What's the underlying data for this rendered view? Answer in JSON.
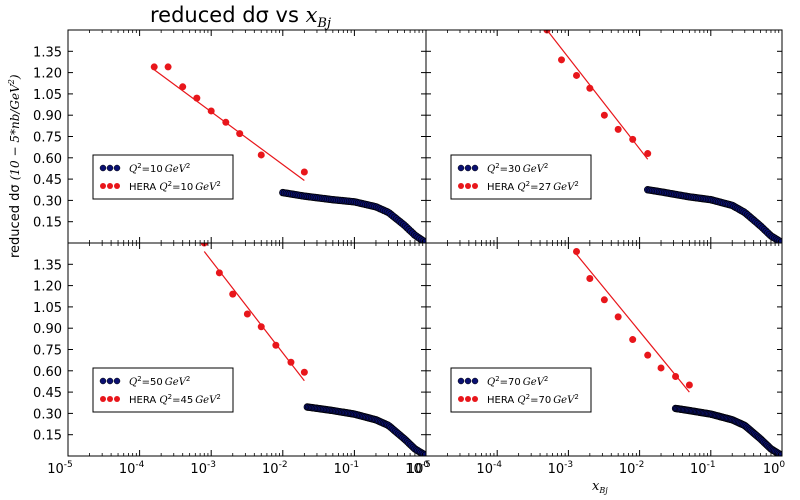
{
  "figure": {
    "title_main": "reduced dσ vs ",
    "title_math": "x",
    "title_sub": "Bj",
    "ylabel_main": "reduced dσ ",
    "ylabel_math": "(10 − 5*nb/GeV",
    "ylabel_sup": "2",
    "ylabel_close": ")",
    "xlabel_math": "x",
    "xlabel_sub": "Bj"
  },
  "colors": {
    "model": "#0a1072",
    "model_edge": "#000000",
    "hera": "#e8161b",
    "fit": "#e8161b"
  },
  "chart_data": [
    {
      "type": "scatter",
      "panel": "top-left",
      "x_scale": "log",
      "xlim": [
        1e-05,
        1
      ],
      "ylim": [
        0,
        1.5
      ],
      "y_ticks": [
        "0.15",
        "0.30",
        "0.45",
        "0.60",
        "0.75",
        "0.90",
        "1.05",
        "1.20",
        "1.35"
      ],
      "grid": false,
      "legend": {
        "placement": "center-left",
        "entries": [
          {
            "series": "model",
            "prefix": "",
            "q": "Q",
            "q_sup": "2",
            "value": "=10",
            "unit": "GeV",
            "unit_sup": "2"
          },
          {
            "series": "hera",
            "prefix": "HERA ",
            "q": "Q",
            "q_sup": "2",
            "value": "=10",
            "unit": "GeV",
            "unit_sup": "2"
          }
        ]
      },
      "series": [
        {
          "name": "Q²=10 GeV²",
          "kind": "model",
          "x_from": 0.01,
          "x_to": 0.98,
          "curve": [
            [
              0.01,
              0.355
            ],
            [
              0.02,
              0.33
            ],
            [
              0.05,
              0.305
            ],
            [
              0.1,
              0.29
            ],
            [
              0.2,
              0.255
            ],
            [
              0.3,
              0.215
            ],
            [
              0.5,
              0.125
            ],
            [
              0.7,
              0.055
            ],
            [
              0.98,
              0.005
            ]
          ]
        },
        {
          "name": "HERA Q²=10 GeV²",
          "kind": "hera",
          "x": [
            0.00016,
            0.00025,
            0.0004,
            0.00063,
            0.001,
            0.0016,
            0.0025,
            0.005,
            0.02
          ],
          "y": [
            1.24,
            1.24,
            1.1,
            1.02,
            0.93,
            0.85,
            0.77,
            0.62,
            0.5
          ]
        },
        {
          "name": "fit",
          "kind": "fit",
          "x": [
            0.00016,
            0.02
          ],
          "y": [
            1.22,
            0.44
          ]
        }
      ]
    },
    {
      "type": "scatter",
      "panel": "top-right",
      "x_scale": "log",
      "xlim": [
        1e-05,
        1
      ],
      "ylim": [
        0,
        1.5
      ],
      "y_ticks": [],
      "grid": false,
      "legend": {
        "placement": "center-left",
        "entries": [
          {
            "series": "model",
            "prefix": "",
            "q": "Q",
            "q_sup": "2",
            "value": "=30",
            "unit": "GeV",
            "unit_sup": "2"
          },
          {
            "series": "hera",
            "prefix": "HERA ",
            "q": "Q",
            "q_sup": "2",
            "value": "=27",
            "unit": "GeV",
            "unit_sup": "2"
          }
        ]
      },
      "series": [
        {
          "name": "Q²=30 GeV²",
          "kind": "model",
          "x_from": 0.013,
          "x_to": 0.98,
          "curve": [
            [
              0.013,
              0.375
            ],
            [
              0.02,
              0.36
            ],
            [
              0.05,
              0.325
            ],
            [
              0.1,
              0.305
            ],
            [
              0.2,
              0.265
            ],
            [
              0.3,
              0.215
            ],
            [
              0.5,
              0.12
            ],
            [
              0.7,
              0.05
            ],
            [
              0.98,
              0.005
            ]
          ]
        },
        {
          "name": "HERA Q²=27 GeV²",
          "kind": "hera",
          "x": [
            0.0005,
            0.0008,
            0.0013,
            0.002,
            0.0032,
            0.005,
            0.008,
            0.013
          ],
          "y": [
            1.5,
            1.29,
            1.18,
            1.09,
            0.9,
            0.8,
            0.73,
            0.63
          ]
        },
        {
          "name": "fit",
          "kind": "fit",
          "x": [
            0.0005,
            0.013
          ],
          "y": [
            1.5,
            0.59
          ]
        }
      ]
    },
    {
      "type": "scatter",
      "panel": "bottom-left",
      "x_scale": "log",
      "xlim": [
        1e-05,
        1
      ],
      "ylim": [
        0,
        1.5
      ],
      "y_ticks": [
        "0.15",
        "0.30",
        "0.45",
        "0.60",
        "0.75",
        "0.90",
        "1.05",
        "1.20",
        "1.35"
      ],
      "x_ticks": [
        {
          "base": "10",
          "exp": "-5"
        },
        {
          "base": "10",
          "exp": "-4"
        },
        {
          "base": "10",
          "exp": "-3"
        },
        {
          "base": "10",
          "exp": "-2"
        },
        {
          "base": "10",
          "exp": "-1"
        },
        {
          "base": "10",
          "exp": "0"
        }
      ],
      "grid": false,
      "legend": {
        "placement": "center-left",
        "entries": [
          {
            "series": "model",
            "prefix": "",
            "q": "Q",
            "q_sup": "2",
            "value": "=50",
            "unit": "GeV",
            "unit_sup": "2"
          },
          {
            "series": "hera",
            "prefix": "HERA ",
            "q": "Q",
            "q_sup": "2",
            "value": "=45",
            "unit": "GeV",
            "unit_sup": "2"
          }
        ]
      },
      "series": [
        {
          "name": "Q²=50 GeV²",
          "kind": "model",
          "x_from": 0.022,
          "x_to": 0.98,
          "curve": [
            [
              0.022,
              0.345
            ],
            [
              0.05,
              0.32
            ],
            [
              0.1,
              0.295
            ],
            [
              0.2,
              0.255
            ],
            [
              0.3,
              0.215
            ],
            [
              0.5,
              0.12
            ],
            [
              0.7,
              0.05
            ],
            [
              0.98,
              0.005
            ]
          ]
        },
        {
          "name": "HERA Q²=45 GeV²",
          "kind": "hera",
          "x": [
            0.0008,
            0.0013,
            0.002,
            0.0032,
            0.005,
            0.008,
            0.013,
            0.02
          ],
          "y": [
            1.5,
            1.29,
            1.14,
            1.0,
            0.91,
            0.78,
            0.66,
            0.59
          ]
        },
        {
          "name": "fit",
          "kind": "fit",
          "x": [
            0.0008,
            0.02
          ],
          "y": [
            1.44,
            0.53
          ]
        }
      ]
    },
    {
      "type": "scatter",
      "panel": "bottom-right",
      "x_scale": "log",
      "xlim": [
        1e-05,
        1
      ],
      "ylim": [
        0,
        1.5
      ],
      "y_ticks": [],
      "x_ticks": [
        {
          "base": "10",
          "exp": "-5"
        },
        {
          "base": "10",
          "exp": "-4"
        },
        {
          "base": "10",
          "exp": "-3"
        },
        {
          "base": "10",
          "exp": "-2"
        },
        {
          "base": "10",
          "exp": "-1"
        },
        {
          "base": "10",
          "exp": "0"
        }
      ],
      "grid": false,
      "legend": {
        "placement": "center-left",
        "entries": [
          {
            "series": "model",
            "prefix": "",
            "q": "Q",
            "q_sup": "2",
            "value": "=70",
            "unit": "GeV",
            "unit_sup": "2"
          },
          {
            "series": "hera",
            "prefix": "HERA ",
            "q": "Q",
            "q_sup": "2",
            "value": "=70",
            "unit": "GeV",
            "unit_sup": "2"
          }
        ]
      },
      "series": [
        {
          "name": "Q²=70 GeV²",
          "kind": "model",
          "x_from": 0.032,
          "x_to": 0.98,
          "curve": [
            [
              0.032,
              0.335
            ],
            [
              0.05,
              0.32
            ],
            [
              0.1,
              0.295
            ],
            [
              0.2,
              0.255
            ],
            [
              0.3,
              0.215
            ],
            [
              0.5,
              0.12
            ],
            [
              0.7,
              0.05
            ],
            [
              0.98,
              0.005
            ]
          ]
        },
        {
          "name": "HERA Q²=70 GeV²",
          "kind": "hera",
          "x": [
            0.0013,
            0.002,
            0.0032,
            0.005,
            0.008,
            0.013,
            0.02,
            0.032,
            0.05
          ],
          "y": [
            1.44,
            1.25,
            1.1,
            0.98,
            0.82,
            0.71,
            0.62,
            0.56,
            0.5
          ]
        },
        {
          "name": "fit",
          "kind": "fit",
          "x": [
            0.0013,
            0.05
          ],
          "y": [
            1.42,
            0.45
          ]
        }
      ]
    }
  ]
}
